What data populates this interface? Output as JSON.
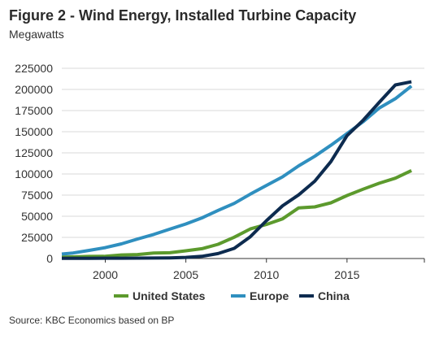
{
  "title": "Figure 2 - Wind Energy, Installed Turbine Capacity",
  "subtitle": "Megawatts",
  "source": "Source: KBC Economics based on BP",
  "chart_data": {
    "type": "line",
    "xlabel": "",
    "ylabel": "",
    "xlim": [
      1997.3,
      2019.8
    ],
    "ylim": [
      0,
      225000
    ],
    "y_ticks": [
      0,
      25000,
      50000,
      75000,
      100000,
      125000,
      150000,
      175000,
      200000,
      225000
    ],
    "x_ticks": [
      2000,
      2005,
      2010,
      2015
    ],
    "grid": "horizontal",
    "legend": "bottom",
    "x": [
      1997,
      1998,
      1999,
      2000,
      2001,
      2002,
      2003,
      2004,
      2005,
      2006,
      2007,
      2008,
      2009,
      2010,
      2011,
      2012,
      2013,
      2014,
      2015,
      2016,
      2017,
      2018,
      2019
    ],
    "series": [
      {
        "name": "United States",
        "color": "#5c9a2d",
        "values": [
          1600,
          1900,
          2500,
          2600,
          4200,
          4700,
          6400,
          6800,
          9100,
          11600,
          16800,
          25200,
          35000,
          40300,
          46900,
          59900,
          61100,
          65900,
          74500,
          82000,
          89000,
          95000,
          104000
        ]
      },
      {
        "name": "Europe",
        "color": "#2f8fbf",
        "values": [
          4800,
          6500,
          9600,
          12900,
          17300,
          23100,
          28500,
          34700,
          40900,
          48100,
          56900,
          65200,
          76200,
          86400,
          96600,
          109600,
          121000,
          133900,
          147800,
          161800,
          178000,
          189000,
          204000
        ]
      },
      {
        "name": "China",
        "color": "#0d2b4f",
        "values": [
          150,
          220,
          270,
          350,
          400,
          470,
          570,
          760,
          1300,
          2600,
          5900,
          12000,
          25800,
          44700,
          62400,
          75300,
          91400,
          114600,
          145400,
          163600,
          184700,
          205300,
          209000
        ]
      }
    ]
  }
}
